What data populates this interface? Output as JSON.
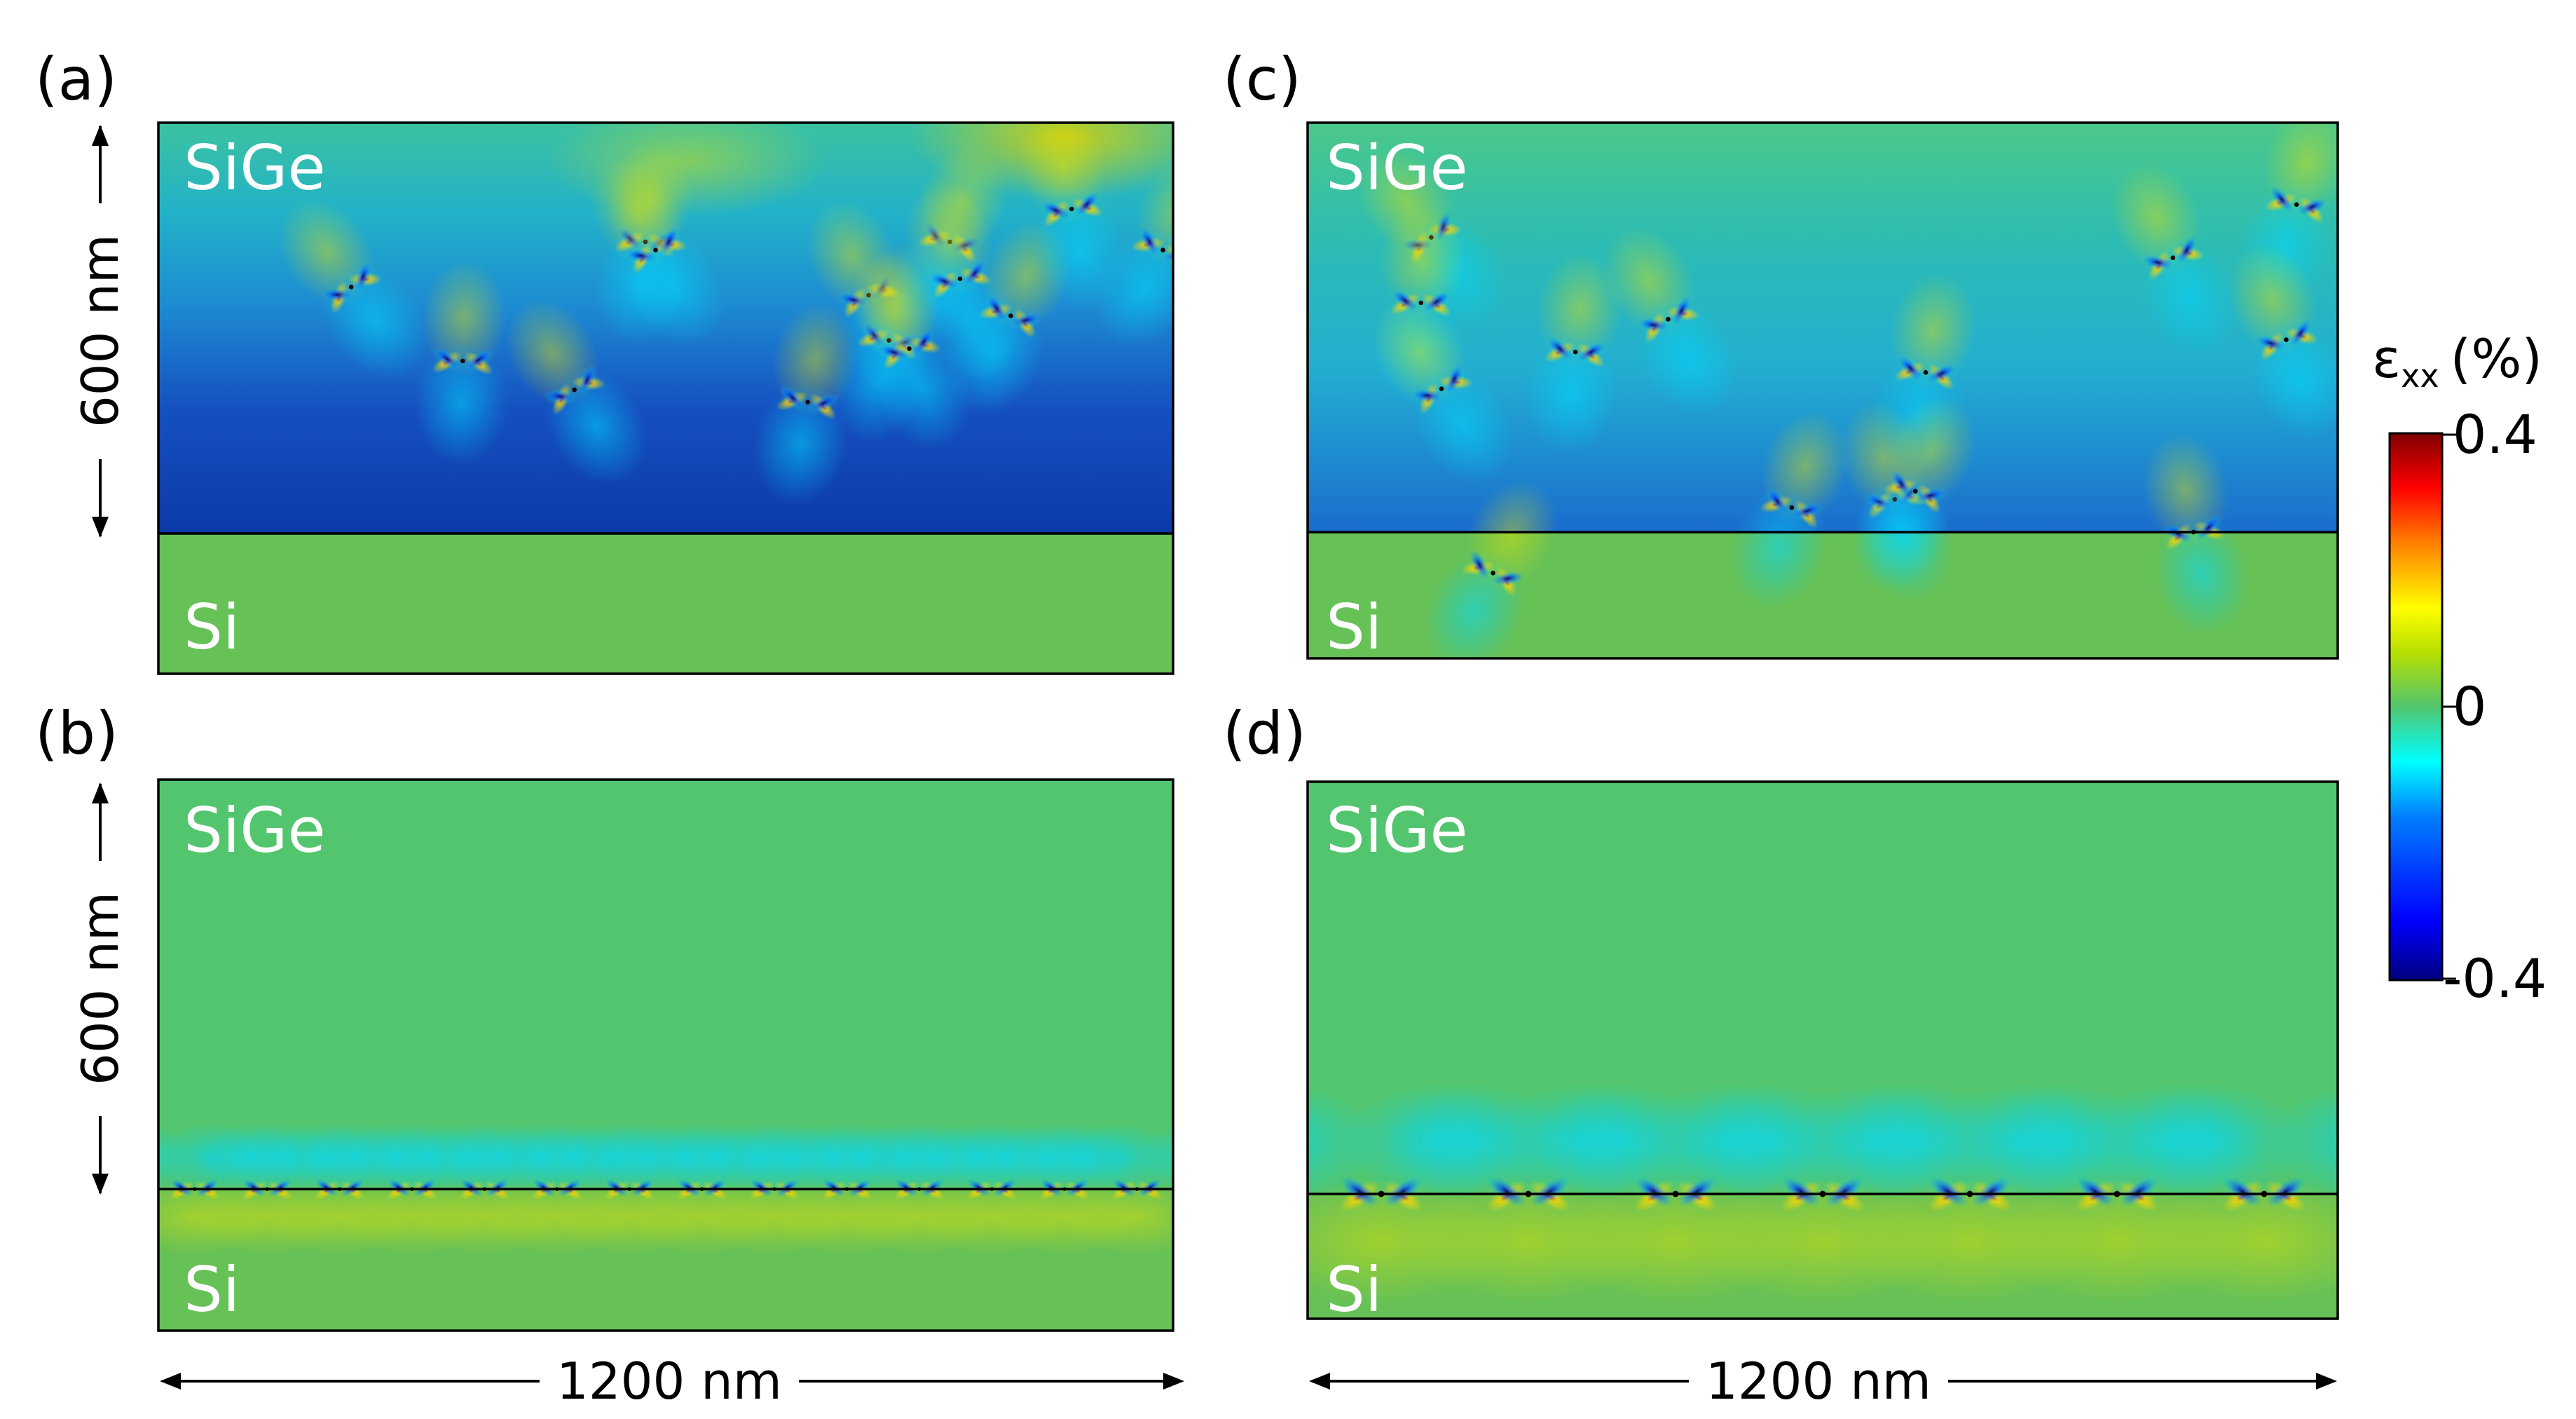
{
  "figure": {
    "colors": {
      "green_zero": "#52c56e",
      "si_green": "#66c157",
      "strained_top": "#20a8c8",
      "strained_mid": "#1766c8",
      "strained_bottom": "#0c3aa8",
      "interface_line": "#000000"
    },
    "scalebars": {
      "width_label": "1200 nm",
      "height_label": "600 nm"
    },
    "colorbar": {
      "title_symbol": "ε",
      "title_sub": "xx",
      "title_unit": "(%)",
      "ticks": [
        "0.4",
        "0",
        "-0.4"
      ],
      "colormap": [
        "#00007f",
        "#0000ff",
        "#007fff",
        "#00ffff",
        "#52c56e",
        "#d4e000",
        "#ffff00",
        "#ff7f00",
        "#ff0000",
        "#7f0000"
      ]
    },
    "panels": [
      {
        "id": "a",
        "label": "(a)",
        "top_material": "SiGe",
        "bottom_material": "Si",
        "state": "relaxed-random",
        "dislocations": [
          [
            0.19,
            0.4
          ],
          [
            0.3,
            0.58
          ],
          [
            0.41,
            0.65
          ],
          [
            0.48,
            0.29
          ],
          [
            0.49,
            0.31
          ],
          [
            0.64,
            0.68
          ],
          [
            0.7,
            0.42
          ],
          [
            0.72,
            0.53
          ],
          [
            0.74,
            0.55
          ],
          [
            0.78,
            0.29
          ],
          [
            0.79,
            0.38
          ],
          [
            0.84,
            0.47
          ],
          [
            0.9,
            0.21
          ],
          [
            0.99,
            0.31
          ]
        ]
      },
      {
        "id": "b",
        "label": "(b)",
        "top_material": "SiGe",
        "bottom_material": "Si",
        "state": "interface-array",
        "dislocation_count": 14
      },
      {
        "id": "c",
        "label": "(c)",
        "top_material": "SiGe",
        "bottom_material": "Si",
        "state": "relaxed-random",
        "dislocations": [
          [
            0.12,
            0.28
          ],
          [
            0.11,
            0.44
          ],
          [
            0.13,
            0.65
          ],
          [
            0.26,
            0.56
          ],
          [
            0.35,
            0.48
          ],
          [
            0.6,
            0.61
          ],
          [
            0.84,
            0.33
          ],
          [
            0.96,
            0.2
          ],
          [
            0.95,
            0.53
          ],
          [
            0.47,
            0.94
          ],
          [
            0.57,
            0.92
          ],
          [
            0.59,
            0.9
          ],
          [
            0.86,
            1.0
          ],
          [
            0.18,
            1.1
          ]
        ]
      },
      {
        "id": "d",
        "label": "(d)",
        "top_material": "SiGe",
        "bottom_material": "Si",
        "state": "interface-array",
        "dislocation_count": 7
      }
    ]
  }
}
